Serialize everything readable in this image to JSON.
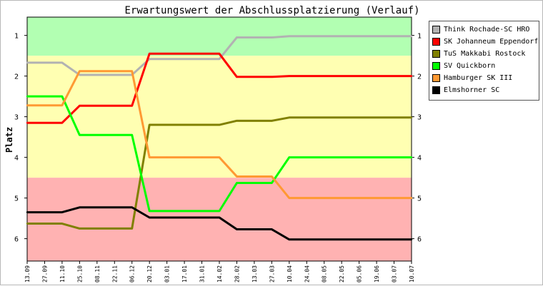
{
  "chart_data": {
    "type": "line",
    "title": "Erwartungswert der Abschlussplatzierung (Verlauf)",
    "ylabel": "Platz",
    "xlabel": "",
    "ylim": [
      0.55,
      6.55
    ],
    "yticks": [
      1,
      2,
      3,
      4,
      5,
      6
    ],
    "categories": [
      "13.09",
      "27.09",
      "11.10",
      "25.10",
      "08.11",
      "22.11",
      "06.12",
      "20.12",
      "03.01",
      "17.01",
      "31.01",
      "14.02",
      "28.02",
      "13.03",
      "27.03",
      "10.04",
      "24.04",
      "08.05",
      "22.05",
      "05.06",
      "19.06",
      "03.07",
      "10.07"
    ],
    "bands": [
      {
        "from": 0.55,
        "to": 1.5,
        "color": "#b2ffb2"
      },
      {
        "from": 1.5,
        "to": 4.5,
        "color": "#ffffb2"
      },
      {
        "from": 4.5,
        "to": 6.55,
        "color": "#ffb2b2"
      }
    ],
    "legend_position": "right",
    "grid": false,
    "series": [
      {
        "name": "Think Rochade-SC HRO",
        "color": "#b2b2b2",
        "values": [
          1.67,
          1.67,
          1.67,
          1.97,
          1.97,
          1.97,
          1.97,
          1.58,
          1.58,
          1.58,
          1.58,
          1.58,
          1.05,
          1.05,
          1.05,
          1.02,
          1.02,
          1.02,
          1.02,
          1.02,
          1.02,
          1.02,
          1.02
        ]
      },
      {
        "name": "SK Johanneum Eppendorf",
        "color": "#ff0000",
        "values": [
          3.15,
          3.15,
          3.15,
          2.73,
          2.73,
          2.73,
          2.73,
          1.45,
          1.45,
          1.45,
          1.45,
          1.45,
          2.02,
          2.02,
          2.02,
          2.0,
          2.0,
          2.0,
          2.0,
          2.0,
          2.0,
          2.0,
          2.0
        ]
      },
      {
        "name": "TuS Makkabi Rostock",
        "color": "#808000",
        "values": [
          5.63,
          5.63,
          5.63,
          5.75,
          5.75,
          5.75,
          5.75,
          3.2,
          3.2,
          3.2,
          3.2,
          3.2,
          3.1,
          3.1,
          3.1,
          3.02,
          3.02,
          3.02,
          3.02,
          3.02,
          3.02,
          3.02,
          3.02
        ]
      },
      {
        "name": "SV Quickborn",
        "color": "#00ff00",
        "values": [
          2.5,
          2.5,
          2.5,
          3.45,
          3.45,
          3.45,
          3.45,
          5.32,
          5.32,
          5.32,
          5.32,
          5.32,
          4.63,
          4.63,
          4.63,
          4.0,
          4.0,
          4.0,
          4.0,
          4.0,
          4.0,
          4.0,
          4.0
        ]
      },
      {
        "name": "Hamburger SK III",
        "color": "#ff9933",
        "values": [
          2.72,
          2.72,
          2.72,
          1.88,
          1.88,
          1.88,
          1.88,
          4.0,
          4.0,
          4.0,
          4.0,
          4.0,
          4.47,
          4.47,
          4.47,
          5.0,
          5.0,
          5.0,
          5.0,
          5.0,
          5.0,
          5.0,
          5.0
        ]
      },
      {
        "name": "Elmshorner SC",
        "color": "#000000",
        "values": [
          5.35,
          5.35,
          5.35,
          5.23,
          5.23,
          5.23,
          5.23,
          5.48,
          5.48,
          5.48,
          5.48,
          5.48,
          5.77,
          5.77,
          5.77,
          6.02,
          6.02,
          6.02,
          6.02,
          6.02,
          6.02,
          6.02,
          6.02
        ]
      }
    ]
  }
}
